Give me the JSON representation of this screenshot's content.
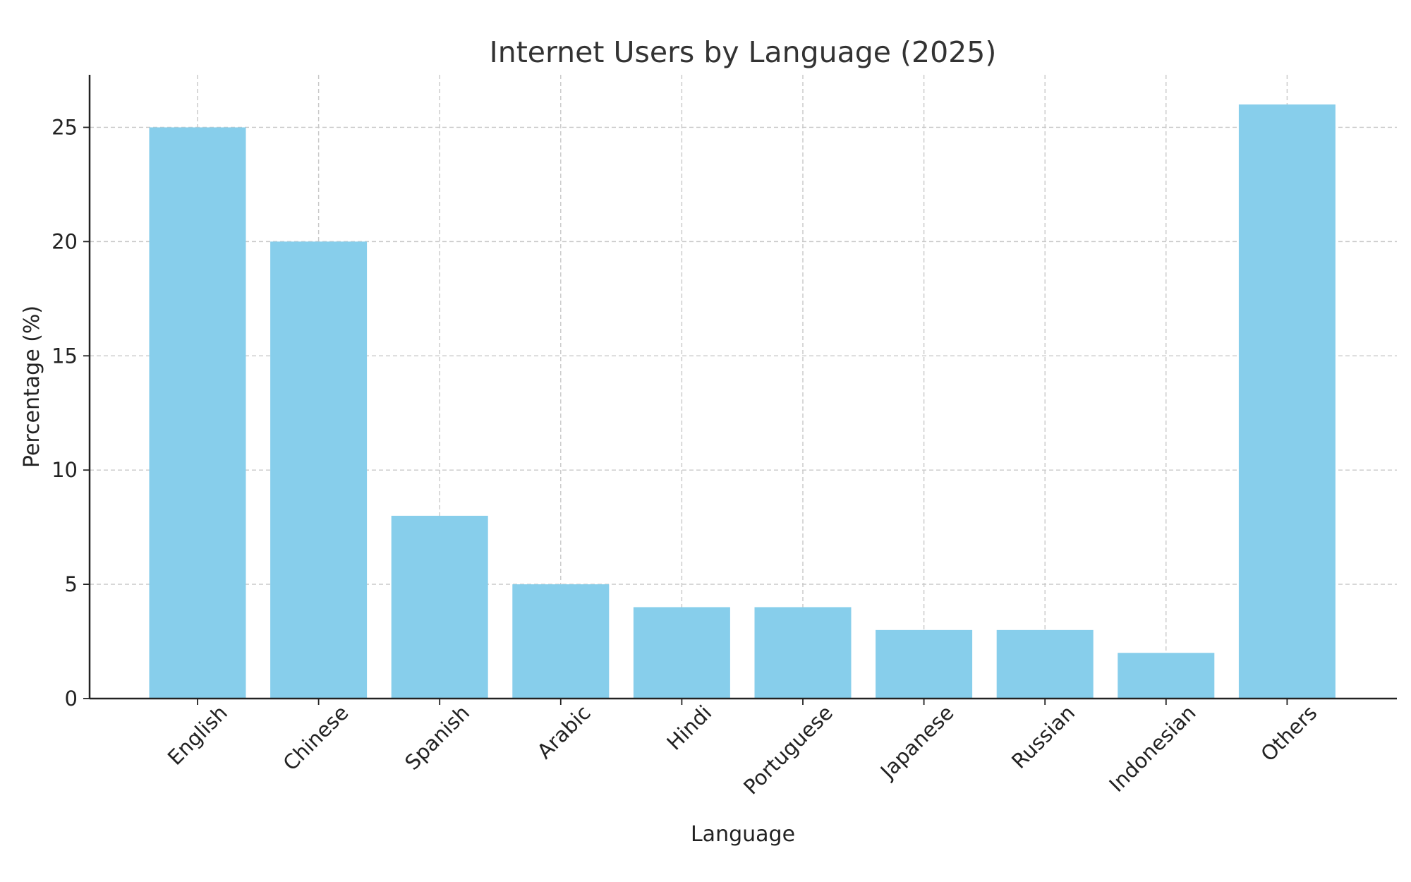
{
  "chart_data": {
    "type": "bar",
    "title": "Internet Users by Language (2025)",
    "xlabel": "Language",
    "ylabel": "Percentage (%)",
    "categories": [
      "English",
      "Chinese",
      "Spanish",
      "Arabic",
      "Hindi",
      "Portuguese",
      "Japanese",
      "Russian",
      "Indonesian",
      "Others"
    ],
    "values": [
      25,
      20,
      8,
      5,
      4,
      4,
      3,
      3,
      2,
      26
    ],
    "ylim": [
      0,
      27.3
    ],
    "yticks": [
      0,
      5,
      10,
      15,
      20,
      25
    ],
    "grid": true,
    "bar_color": "#87CEEB"
  }
}
